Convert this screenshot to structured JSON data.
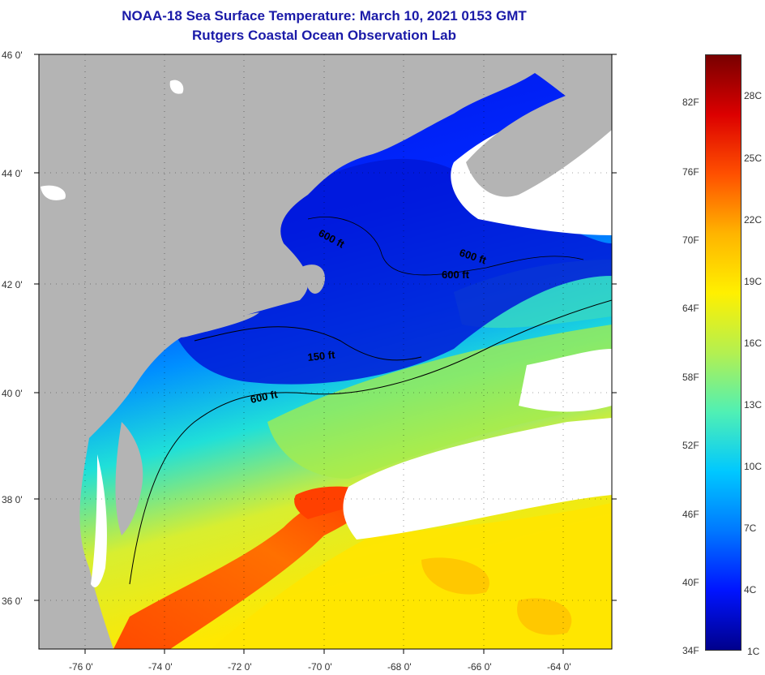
{
  "title": "NOAA-18 Sea Surface Temperature:  March 10, 2021 0153 GMT",
  "subtitle": "Rutgers Coastal Ocean Observation Lab",
  "lat_labels": [
    "46 0'",
    "44 0'",
    "42 0'",
    "40 0'",
    "38 0'",
    "36 0'"
  ],
  "lon_labels": [
    "-76 0'",
    "-74 0'",
    "-72 0'",
    "-70 0'",
    "-68 0'",
    "-66 0'",
    "-64 0'"
  ],
  "contour_labels": [
    "600 ft",
    "600 ft",
    "600 ft",
    "150 ft",
    "600 ft"
  ],
  "colorbar": {
    "fahrenheit": [
      "82F",
      "76F",
      "70F",
      "64F",
      "58F",
      "52F",
      "46F",
      "40F",
      "34F"
    ],
    "celsius": [
      "28C",
      "25C",
      "22C",
      "19C",
      "16C",
      "13C",
      "10C",
      "7C",
      "4C",
      "1C"
    ]
  },
  "colors": {
    "title": "#1a1aa8",
    "land": "#b4b4b4",
    "cloud": "#ffffff",
    "colormap": [
      "#00008c",
      "#0014ff",
      "#0078ff",
      "#00c8ff",
      "#50f0b4",
      "#b4f050",
      "#fff000",
      "#ffb400",
      "#ff5000",
      "#dc0000",
      "#780000"
    ]
  }
}
